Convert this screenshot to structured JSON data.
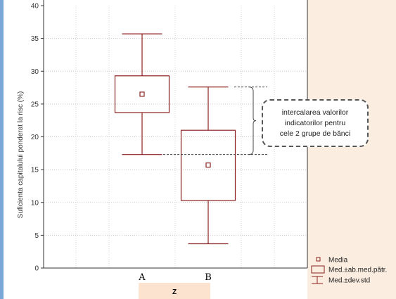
{
  "chart_data": {
    "type": "box",
    "title": "",
    "xlabel": "Z",
    "ylabel": "Suficienta capitalului ponderat la risc (%)",
    "ylim": [
      0,
      40
    ],
    "yticks": [
      0,
      5,
      10,
      15,
      20,
      25,
      30,
      35,
      40
    ],
    "grid": "horizontal dotted",
    "categories": [
      "A",
      "B"
    ],
    "series": [
      {
        "category": "A",
        "mean": 26.5,
        "box_low": 23.7,
        "box_high": 29.3,
        "whisker_low": 17.3,
        "whisker_high": 35.7
      },
      {
        "category": "B",
        "mean": 15.7,
        "box_low": 10.3,
        "box_high": 21.0,
        "whisker_low": 3.7,
        "whisker_high": 27.6
      }
    ],
    "annotation": {
      "text_lines": [
        "intercalarea valorilor",
        "indicatorilor pentru",
        "cele 2 grupe de bănci"
      ],
      "range": [
        17.3,
        27.6
      ]
    },
    "legend": {
      "position": "bottom-right",
      "items": [
        {
          "symbol": "mean-point",
          "label": "Media"
        },
        {
          "symbol": "box",
          "label": "Med.±ab.med.pătr."
        },
        {
          "symbol": "whisker",
          "label": "Med.±dev.std"
        }
      ]
    }
  },
  "colors": {
    "marks": "#8b2020",
    "left_stripe": "#7aa7d6",
    "right_panel": "#fbeee0",
    "xlabel_band": "#fbe3cf"
  }
}
